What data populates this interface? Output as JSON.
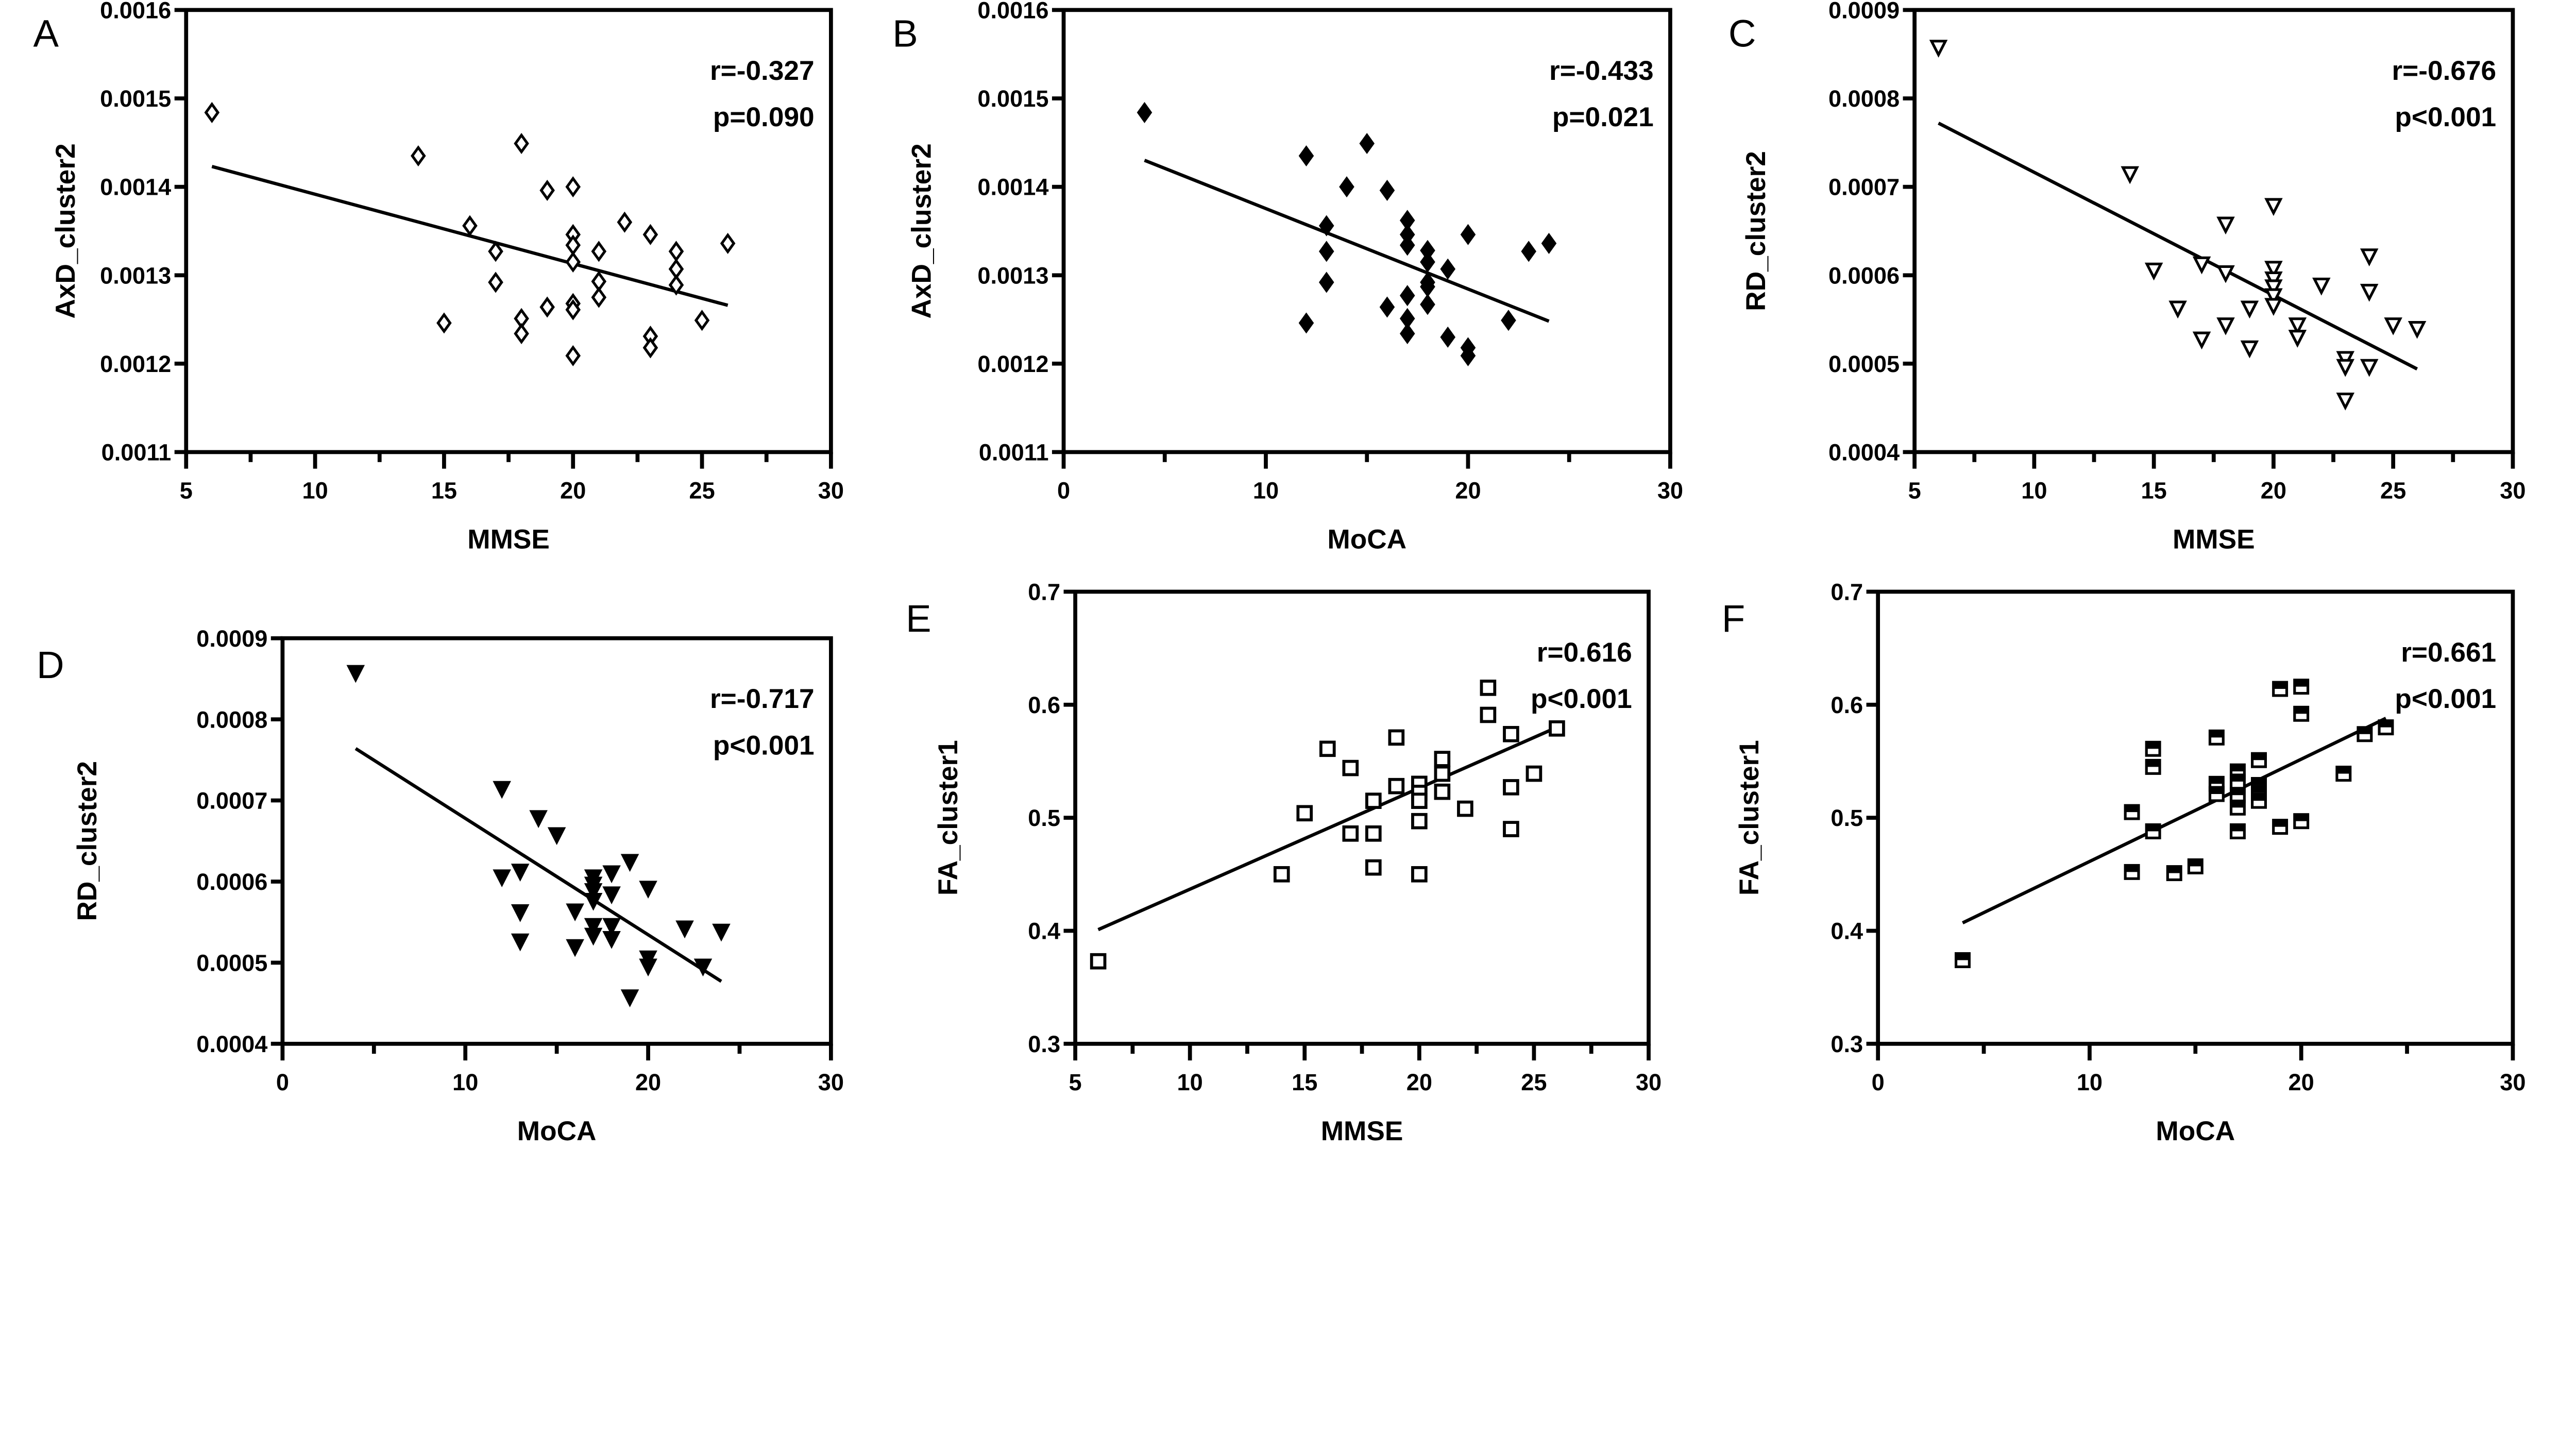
{
  "chart_data": [
    {
      "panel": "A",
      "type": "scatter",
      "marker": "open-diamond",
      "xlabel": "MMSE",
      "ylabel": "AxD_cluster2",
      "xlim": [
        5,
        30
      ],
      "ylim": [
        0.0011,
        0.0016
      ],
      "xticks": [
        5,
        10,
        15,
        20,
        25,
        30
      ],
      "yticks": [
        "0.0011",
        "0.0012",
        "0.0013",
        "0.0014",
        "0.0015",
        "0.0016"
      ],
      "r": "r=-0.327",
      "p": "p=0.090",
      "fit": [
        [
          6,
          0.001423
        ],
        [
          26,
          0.001266
        ]
      ],
      "points": [
        [
          6,
          0.001484
        ],
        [
          14,
          0.001435
        ],
        [
          18,
          0.001449
        ],
        [
          19,
          0.001396
        ],
        [
          20,
          0.0014
        ],
        [
          16,
          0.001356
        ],
        [
          22,
          0.00136
        ],
        [
          23,
          0.001346
        ],
        [
          20,
          0.001346
        ],
        [
          20,
          0.001334
        ],
        [
          21,
          0.001327
        ],
        [
          17,
          0.001327
        ],
        [
          24,
          0.001327
        ],
        [
          26,
          0.001336
        ],
        [
          20,
          0.001315
        ],
        [
          24,
          0.001307
        ],
        [
          17,
          0.001292
        ],
        [
          21,
          0.001293
        ],
        [
          24,
          0.001289
        ],
        [
          21,
          0.001275
        ],
        [
          19,
          0.001264
        ],
        [
          20,
          0.001268
        ],
        [
          20,
          0.001261
        ],
        [
          15,
          0.001246
        ],
        [
          18,
          0.001251
        ],
        [
          18,
          0.001234
        ],
        [
          25,
          0.001249
        ],
        [
          23,
          0.001231
        ],
        [
          23,
          0.001218
        ],
        [
          20,
          0.001209
        ]
      ]
    },
    {
      "panel": "B",
      "type": "scatter",
      "marker": "filled-diamond",
      "xlabel": "MoCA",
      "ylabel": "AxD_cluster2",
      "xlim": [
        0,
        30
      ],
      "ylim": [
        0.0011,
        0.0016
      ],
      "xticks": [
        0,
        10,
        20,
        30
      ],
      "yticks": [
        "0.0011",
        "0.0012",
        "0.0013",
        "0.0014",
        "0.0015",
        "0.0016"
      ],
      "r": "r=-0.433",
      "p": "p=0.021",
      "fit": [
        [
          4,
          0.00143
        ],
        [
          24,
          0.001248
        ]
      ],
      "points": [
        [
          4,
          0.001484
        ],
        [
          12,
          0.001435
        ],
        [
          15,
          0.001449
        ],
        [
          14,
          0.0014
        ],
        [
          16,
          0.001396
        ],
        [
          13,
          0.001356
        ],
        [
          17,
          0.001362
        ],
        [
          17,
          0.001346
        ],
        [
          17,
          0.001334
        ],
        [
          20,
          0.001346
        ],
        [
          13,
          0.001327
        ],
        [
          18,
          0.001328
        ],
        [
          18,
          0.001315
        ],
        [
          23,
          0.001327
        ],
        [
          24,
          0.001336
        ],
        [
          19,
          0.001307
        ],
        [
          13,
          0.001292
        ],
        [
          18,
          0.001292
        ],
        [
          18,
          0.001287
        ],
        [
          17,
          0.001277
        ],
        [
          18,
          0.001267
        ],
        [
          16,
          0.001264
        ],
        [
          12,
          0.001246
        ],
        [
          17,
          0.001251
        ],
        [
          17,
          0.001234
        ],
        [
          22,
          0.001249
        ],
        [
          19,
          0.00123
        ],
        [
          20,
          0.001218
        ],
        [
          20,
          0.001209
        ]
      ]
    },
    {
      "panel": "C",
      "type": "scatter",
      "marker": "open-triangle-down",
      "xlabel": "MMSE",
      "ylabel": "RD_cluster2",
      "xlim": [
        5,
        30
      ],
      "ylim": [
        0.0004,
        0.0009
      ],
      "xticks": [
        5,
        10,
        15,
        20,
        25,
        30
      ],
      "yticks": [
        "0.0004",
        "0.0005",
        "0.0006",
        "0.0007",
        "0.0008",
        "0.0009"
      ],
      "r": "r=-0.676",
      "p": "p<0.001",
      "fit": [
        [
          6,
          0.000772
        ],
        [
          26,
          0.000494
        ]
      ],
      "points": [
        [
          6,
          0.000858
        ],
        [
          14,
          0.000715
        ],
        [
          20,
          0.000679
        ],
        [
          18,
          0.000658
        ],
        [
          15,
          0.000606
        ],
        [
          17,
          0.000613
        ],
        [
          18,
          0.000603
        ],
        [
          20,
          0.000608
        ],
        [
          20,
          0.000596
        ],
        [
          20,
          0.000587
        ],
        [
          20,
          0.000577
        ],
        [
          20,
          0.000566
        ],
        [
          22,
          0.000589
        ],
        [
          24,
          0.000622
        ],
        [
          24,
          0.000582
        ],
        [
          16,
          0.000563
        ],
        [
          19,
          0.000563
        ],
        [
          18,
          0.000544
        ],
        [
          17,
          0.000528
        ],
        [
          19,
          0.000518
        ],
        [
          21,
          0.000544
        ],
        [
          21,
          0.00053
        ],
        [
          25,
          0.000544
        ],
        [
          26,
          0.00054
        ],
        [
          23,
          0.000506
        ],
        [
          23,
          0.000497
        ],
        [
          24,
          0.000497
        ],
        [
          23,
          0.000459
        ]
      ]
    },
    {
      "panel": "D",
      "type": "scatter",
      "marker": "filled-triangle-down",
      "xlabel": "MoCA",
      "ylabel": "RD_cluster2",
      "xlim": [
        0,
        30
      ],
      "ylim": [
        0.0004,
        0.0009
      ],
      "xticks": [
        0,
        10,
        20,
        30
      ],
      "yticks": [
        "0.0004",
        "0.0005",
        "0.0006",
        "0.0007",
        "0.0008",
        "0.0009"
      ],
      "r": "r=-0.717",
      "p": "p<0.001",
      "fit": [
        [
          4,
          0.000764
        ],
        [
          24,
          0.000477
        ]
      ],
      "points": [
        [
          4,
          0.000858
        ],
        [
          12,
          0.000715
        ],
        [
          14,
          0.000679
        ],
        [
          15,
          0.000658
        ],
        [
          19,
          0.000625
        ],
        [
          12,
          0.000606
        ],
        [
          13,
          0.000613
        ],
        [
          17,
          0.000606
        ],
        [
          17,
          0.000597
        ],
        [
          17,
          0.000589
        ],
        [
          17,
          0.000577
        ],
        [
          18,
          0.000611
        ],
        [
          18,
          0.000585
        ],
        [
          20,
          0.000592
        ],
        [
          13,
          0.000563
        ],
        [
          16,
          0.000564
        ],
        [
          17,
          0.000546
        ],
        [
          17,
          0.000534
        ],
        [
          18,
          0.000546
        ],
        [
          18,
          0.00053
        ],
        [
          13,
          0.000527
        ],
        [
          16,
          0.00052
        ],
        [
          22,
          0.000543
        ],
        [
          24,
          0.000539
        ],
        [
          20,
          0.000506
        ],
        [
          20,
          0.000496
        ],
        [
          23,
          0.000496
        ],
        [
          19,
          0.000458
        ]
      ]
    },
    {
      "panel": "E",
      "type": "scatter",
      "marker": "open-square",
      "xlabel": "MMSE",
      "ylabel": "FA_cluster1",
      "xlim": [
        5,
        30
      ],
      "ylim": [
        0.3,
        0.7
      ],
      "xticks": [
        5,
        10,
        15,
        20,
        25,
        30
      ],
      "yticks": [
        "0.3",
        "0.4",
        "0.5",
        "0.6",
        "0.7"
      ],
      "r": "r=0.616",
      "p": "p<0.001",
      "fit": [
        [
          6,
          0.401
        ],
        [
          26,
          0.58
        ]
      ],
      "points": [
        [
          6,
          0.373
        ],
        [
          14,
          0.45
        ],
        [
          15,
          0.504
        ],
        [
          16,
          0.561
        ],
        [
          17,
          0.544
        ],
        [
          17,
          0.486
        ],
        [
          18,
          0.515
        ],
        [
          18,
          0.486
        ],
        [
          18,
          0.456
        ],
        [
          19,
          0.571
        ],
        [
          19,
          0.528
        ],
        [
          20,
          0.53
        ],
        [
          20,
          0.522
        ],
        [
          20,
          0.515
        ],
        [
          20,
          0.497
        ],
        [
          20,
          0.45
        ],
        [
          21,
          0.552
        ],
        [
          21,
          0.539
        ],
        [
          21,
          0.523
        ],
        [
          22,
          0.508
        ],
        [
          23,
          0.615
        ],
        [
          23,
          0.591
        ],
        [
          24,
          0.574
        ],
        [
          24,
          0.527
        ],
        [
          24,
          0.49
        ],
        [
          25,
          0.539
        ],
        [
          26,
          0.579
        ]
      ]
    },
    {
      "panel": "F",
      "type": "scatter",
      "marker": "half-filled-square",
      "xlabel": "MoCA",
      "ylabel": "FA_cluster1",
      "xlim": [
        0,
        30
      ],
      "ylim": [
        0.3,
        0.7
      ],
      "xticks": [
        0,
        10,
        20,
        30
      ],
      "yticks": [
        "0.3",
        "0.4",
        "0.5",
        "0.6",
        "0.7"
      ],
      "r": "r=0.661",
      "p": "p<0.001",
      "fit": [
        [
          4,
          0.407
        ],
        [
          24,
          0.588
        ]
      ],
      "points": [
        [
          4,
          0.374
        ],
        [
          12,
          0.505
        ],
        [
          12,
          0.452
        ],
        [
          13,
          0.561
        ],
        [
          13,
          0.545
        ],
        [
          13,
          0.488
        ],
        [
          14,
          0.451
        ],
        [
          15,
          0.457
        ],
        [
          16,
          0.571
        ],
        [
          16,
          0.53
        ],
        [
          16,
          0.521
        ],
        [
          17,
          0.541
        ],
        [
          17,
          0.532
        ],
        [
          17,
          0.52
        ],
        [
          17,
          0.509
        ],
        [
          17,
          0.488
        ],
        [
          18,
          0.551
        ],
        [
          18,
          0.529
        ],
        [
          18,
          0.522
        ],
        [
          18,
          0.515
        ],
        [
          19,
          0.614
        ],
        [
          19,
          0.492
        ],
        [
          20,
          0.616
        ],
        [
          20,
          0.592
        ],
        [
          20,
          0.497
        ],
        [
          22,
          0.539
        ],
        [
          23,
          0.574
        ],
        [
          24,
          0.58
        ]
      ]
    }
  ]
}
